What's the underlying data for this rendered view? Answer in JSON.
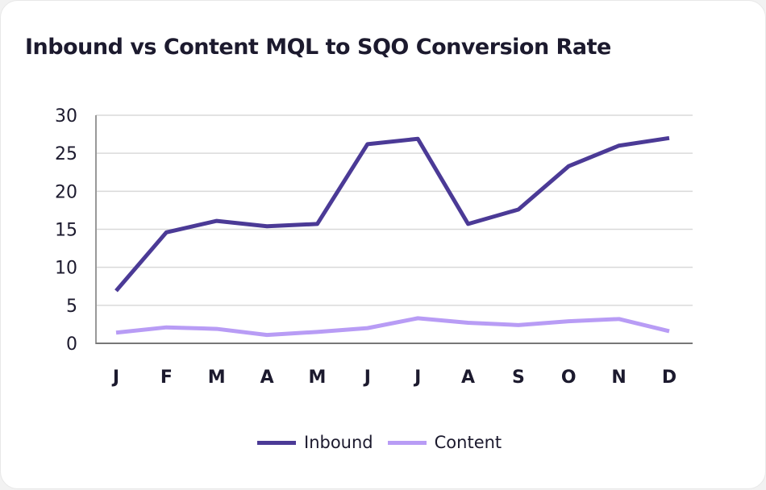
{
  "chart_data": {
    "type": "line",
    "title": "Inbound vs Content MQL to SQO Conversion Rate",
    "categories": [
      "J",
      "F",
      "M",
      "A",
      "M",
      "J",
      "J",
      "A",
      "S",
      "O",
      "N",
      "D"
    ],
    "yticks": [
      0,
      5,
      10,
      15,
      20,
      25,
      30
    ],
    "ylim": [
      0,
      30
    ],
    "grid": true,
    "legend_position": "bottom",
    "series": [
      {
        "name": "Inbound",
        "color": "#4b3a96",
        "values": [
          6.9,
          14.6,
          16.1,
          15.4,
          15.7,
          26.2,
          26.9,
          15.7,
          17.6,
          23.3,
          26.0,
          27.0
        ]
      },
      {
        "name": "Content",
        "color": "#b89cf5",
        "values": [
          1.4,
          2.1,
          1.9,
          1.1,
          1.5,
          2.0,
          3.3,
          2.7,
          2.4,
          2.9,
          3.2,
          1.6
        ]
      }
    ]
  }
}
